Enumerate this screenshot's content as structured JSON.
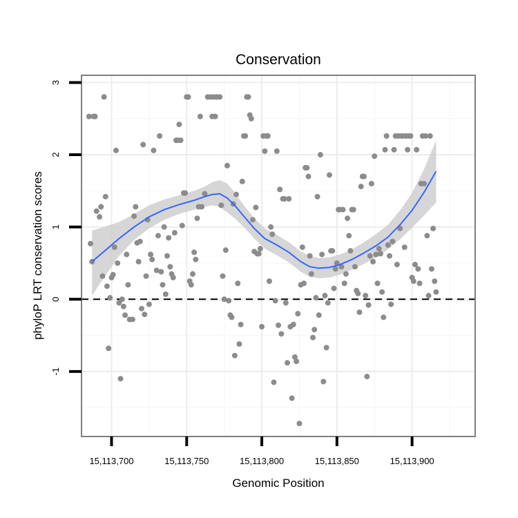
{
  "chart_data": {
    "type": "scatter",
    "title": "Conservation",
    "xlabel": "Genomic Position",
    "ylabel": "phyloP LRT conservation scores",
    "xlim": [
      15113680,
      15113942
    ],
    "ylim": [
      -1.9,
      3.1
    ],
    "x_ticks": [
      15113700,
      15113750,
      15113800,
      15113850,
      15113900
    ],
    "x_tick_labels": [
      "15,113,700",
      "15,113,750",
      "15,113,800",
      "15,113,850",
      "15,113,900"
    ],
    "y_ticks": [
      -1,
      0,
      1,
      2,
      3
    ],
    "y_tick_labels": [
      "-1",
      "0",
      "1",
      "2",
      "3"
    ],
    "reference_line": {
      "y": 0,
      "style": "dashed"
    },
    "grid": true,
    "colors": {
      "points": "#8c8c8c",
      "smooth": "#3366ff",
      "band": "#cfcfcf",
      "border": "#7f7f7f"
    },
    "points": [
      [
        15113685,
        2.53
      ],
      [
        15113686,
        0.77
      ],
      [
        15113687,
        0.52
      ],
      [
        15113688,
        2.53
      ],
      [
        15113689,
        2.53
      ],
      [
        15113690,
        1.22
      ],
      [
        15113692,
        1.14
      ],
      [
        15113693,
        1.28
      ],
      [
        15113694,
        0.32
      ],
      [
        15113695,
        2.8
      ],
      [
        15113696,
        1.42
      ],
      [
        15113697,
        0.18
      ],
      [
        15113698,
        -0.68
      ],
      [
        15113699,
        0.02
      ],
      [
        15113700,
        0.3
      ],
      [
        15113701,
        0.34
      ],
      [
        15113702,
        0.72
      ],
      [
        15113703,
        2.06
      ],
      [
        15113704,
        0.5
      ],
      [
        15113705,
        -0.05
      ],
      [
        15113706,
        -1.1
      ],
      [
        15113707,
        0.0
      ],
      [
        15113708,
        -0.1
      ],
      [
        15113709,
        -0.22
      ],
      [
        15113710,
        0.62
      ],
      [
        15113711,
        0.2
      ],
      [
        15113712,
        -0.28
      ],
      [
        15113714,
        -0.28
      ],
      [
        15113715,
        1.15
      ],
      [
        15113716,
        1.28
      ],
      [
        15113717,
        0.78
      ],
      [
        15113718,
        0.52
      ],
      [
        15113719,
        0.8
      ],
      [
        15113720,
        -0.13
      ],
      [
        15113721,
        2.14
      ],
      [
        15113722,
        -0.21
      ],
      [
        15113723,
        0.32
      ],
      [
        15113724,
        1.1
      ],
      [
        15113725,
        -0.07
      ],
      [
        15113726,
        0.62
      ],
      [
        15113727,
        0.55
      ],
      [
        15113728,
        2.06
      ],
      [
        15113730,
        0.4
      ],
      [
        15113731,
        0.88
      ],
      [
        15113732,
        2.26
      ],
      [
        15113733,
        0.38
      ],
      [
        15113734,
        0.2
      ],
      [
        15113735,
        1.0
      ],
      [
        15113736,
        0.07
      ],
      [
        15113737,
        0.6
      ],
      [
        15113738,
        0.85
      ],
      [
        15113739,
        0.45
      ],
      [
        15113740,
        0.35
      ],
      [
        15113741,
        0.3
      ],
      [
        15113742,
        0.92
      ],
      [
        15113743,
        2.2
      ],
      [
        15113744,
        2.2
      ],
      [
        15113745,
        2.42
      ],
      [
        15113746,
        2.2
      ],
      [
        15113747,
        1.02
      ],
      [
        15113748,
        1.47
      ],
      [
        15113749,
        1.47
      ],
      [
        15113750,
        2.8
      ],
      [
        15113751,
        2.8
      ],
      [
        15113752,
        0.25
      ],
      [
        15113753,
        0.2
      ],
      [
        15113754,
        0.35
      ],
      [
        15113755,
        0.65
      ],
      [
        15113756,
        0.55
      ],
      [
        15113757,
        1.12
      ],
      [
        15113758,
        1.28
      ],
      [
        15113759,
        2.53
      ],
      [
        15113760,
        1.28
      ],
      [
        15113762,
        1.46
      ],
      [
        15113764,
        2.8
      ],
      [
        15113766,
        2.8
      ],
      [
        15113767,
        2.53
      ],
      [
        15113768,
        2.8
      ],
      [
        15113769,
        2.53
      ],
      [
        15113770,
        2.8
      ],
      [
        15113772,
        2.8
      ],
      [
        15113773,
        1.3
      ],
      [
        15113774,
        0.32
      ],
      [
        15113775,
        0.0
      ],
      [
        15113776,
        0.68
      ],
      [
        15113777,
        1.85
      ],
      [
        15113778,
        -0.02
      ],
      [
        15113779,
        -0.22
      ],
      [
        15113780,
        -0.25
      ],
      [
        15113781,
        1.32
      ],
      [
        15113782,
        -0.78
      ],
      [
        15113783,
        1.45
      ],
      [
        15113784,
        0.22
      ],
      [
        15113785,
        -0.62
      ],
      [
        15113786,
        -0.35
      ],
      [
        15113787,
        1.63
      ],
      [
        15113788,
        2.26
      ],
      [
        15113789,
        2.26
      ],
      [
        15113790,
        2.8
      ],
      [
        15113791,
        2.8
      ],
      [
        15113792,
        2.55
      ],
      [
        15113793,
        2.5
      ],
      [
        15113794,
        1.1
      ],
      [
        15113795,
        0.66
      ],
      [
        15113796,
        1.27
      ],
      [
        15113797,
        0.63
      ],
      [
        15113798,
        0.63
      ],
      [
        15113799,
        0.7
      ],
      [
        15113800,
        -0.38
      ],
      [
        15113801,
        2.26
      ],
      [
        15113802,
        2.05
      ],
      [
        15113803,
        2.26
      ],
      [
        15113804,
        2.26
      ],
      [
        15113805,
        0.25
      ],
      [
        15113806,
        1.0
      ],
      [
        15113807,
        0.9
      ],
      [
        15113808,
        -1.15
      ],
      [
        15113809,
        -0.02
      ],
      [
        15113810,
        2.05
      ],
      [
        15113811,
        -0.36
      ],
      [
        15113812,
        1.52
      ],
      [
        15113813,
        -0.48
      ],
      [
        15113814,
        1.39
      ],
      [
        15113815,
        1.39
      ],
      [
        15113816,
        -0.05
      ],
      [
        15113817,
        -0.88
      ],
      [
        15113818,
        1.39
      ],
      [
        15113819,
        -0.38
      ],
      [
        15113820,
        -1.37
      ],
      [
        15113821,
        -0.35
      ],
      [
        15113822,
        -0.8
      ],
      [
        15113823,
        -0.86
      ],
      [
        15113824,
        -0.2
      ],
      [
        15113825,
        -1.72
      ],
      [
        15113826,
        0.2
      ],
      [
        15113827,
        0.72
      ],
      [
        15113828,
        0.22
      ],
      [
        15113829,
        1.82
      ],
      [
        15113830,
        1.82
      ],
      [
        15113831,
        1.7
      ],
      [
        15113832,
        0.6
      ],
      [
        15113833,
        0.35
      ],
      [
        15113834,
        -0.53
      ],
      [
        15113835,
        -0.42
      ],
      [
        15113836,
        0.02
      ],
      [
        15113837,
        1.42
      ],
      [
        15113838,
        -0.22
      ],
      [
        15113839,
        2.0
      ],
      [
        15113840,
        0.62
      ],
      [
        15113841,
        -1.14
      ],
      [
        15113842,
        0.05
      ],
      [
        15113843,
        -0.67
      ],
      [
        15113844,
        -0.05
      ],
      [
        15113845,
        1.72
      ],
      [
        15113846,
        0.67
      ],
      [
        15113847,
        0.67
      ],
      [
        15113848,
        0.15
      ],
      [
        15113849,
        0.42
      ],
      [
        15113850,
        0.5
      ],
      [
        15113851,
        1.24
      ],
      [
        15113852,
        1.24
      ],
      [
        15113853,
        0.45
      ],
      [
        15113854,
        1.24
      ],
      [
        15113855,
        0.22
      ],
      [
        15113856,
        0.35
      ],
      [
        15113857,
        1.12
      ],
      [
        15113858,
        0.88
      ],
      [
        15113859,
        0.67
      ],
      [
        15113860,
        1.24
      ],
      [
        15113861,
        1.24
      ],
      [
        15113862,
        0.45
      ],
      [
        15113863,
        0.12
      ],
      [
        15113864,
        0.08
      ],
      [
        15113865,
        -0.18
      ],
      [
        15113866,
        1.56
      ],
      [
        15113867,
        1.7
      ],
      [
        15113868,
        1.7
      ],
      [
        15113869,
        0.05
      ],
      [
        15113870,
        -1.07
      ],
      [
        15113871,
        -0.08
      ],
      [
        15113872,
        0.6
      ],
      [
        15113873,
        1.6
      ],
      [
        15113874,
        0.52
      ],
      [
        15113875,
        1.98
      ],
      [
        15113876,
        0.62
      ],
      [
        15113877,
        0.22
      ],
      [
        15113878,
        0.7
      ],
      [
        15113879,
        0.63
      ],
      [
        15113880,
        0.1
      ],
      [
        15113881,
        -0.25
      ],
      [
        15113882,
        2.07
      ],
      [
        15113883,
        2.26
      ],
      [
        15113884,
        0.75
      ],
      [
        15113885,
        0.6
      ],
      [
        15113886,
        -0.07
      ],
      [
        15113887,
        0.8
      ],
      [
        15113888,
        2.07
      ],
      [
        15113889,
        2.26
      ],
      [
        15113890,
        0.48
      ],
      [
        15113891,
        2.26
      ],
      [
        15113892,
        0.98
      ],
      [
        15113893,
        2.26
      ],
      [
        15113894,
        2.26
      ],
      [
        15113895,
        0.72
      ],
      [
        15113896,
        2.26
      ],
      [
        15113897,
        2.07
      ],
      [
        15113898,
        2.26
      ],
      [
        15113899,
        2.26
      ],
      [
        15113900,
        0.3
      ],
      [
        15113901,
        0.25
      ],
      [
        15113902,
        0.48
      ],
      [
        15113903,
        2.07
      ],
      [
        15113904,
        0.42
      ],
      [
        15113905,
        0.22
      ],
      [
        15113906,
        1.6
      ],
      [
        15113907,
        2.26
      ],
      [
        15113908,
        1.6
      ],
      [
        15113909,
        2.26
      ],
      [
        15113910,
        0.88
      ],
      [
        15113911,
        0.05
      ],
      [
        15113912,
        2.26
      ],
      [
        15113913,
        0.42
      ],
      [
        15113914,
        0.98
      ],
      [
        15113915,
        0.25
      ],
      [
        15113916,
        0.1
      ]
    ],
    "smooth_curve": [
      [
        15113687,
        0.52
      ],
      [
        15113695,
        0.66
      ],
      [
        15113705,
        0.84
      ],
      [
        15113715,
        1.0
      ],
      [
        15113725,
        1.14
      ],
      [
        15113735,
        1.24
      ],
      [
        15113745,
        1.31
      ],
      [
        15113755,
        1.37
      ],
      [
        15113762,
        1.42
      ],
      [
        15113767,
        1.45
      ],
      [
        15113772,
        1.46
      ],
      [
        15113777,
        1.4
      ],
      [
        15113782,
        1.3
      ],
      [
        15113788,
        1.15
      ],
      [
        15113795,
        0.98
      ],
      [
        15113802,
        0.84
      ],
      [
        15113810,
        0.75
      ],
      [
        15113818,
        0.65
      ],
      [
        15113826,
        0.52
      ],
      [
        15113832,
        0.45
      ],
      [
        15113838,
        0.43
      ],
      [
        15113845,
        0.44
      ],
      [
        15113852,
        0.48
      ],
      [
        15113860,
        0.55
      ],
      [
        15113868,
        0.64
      ],
      [
        15113876,
        0.74
      ],
      [
        15113884,
        0.86
      ],
      [
        15113892,
        1.03
      ],
      [
        15113900,
        1.23
      ],
      [
        15113908,
        1.48
      ],
      [
        15113916,
        1.77
      ]
    ],
    "ci_upper": [
      [
        15113687,
        0.95
      ],
      [
        15113695,
        1.0
      ],
      [
        15113705,
        1.07
      ],
      [
        15113715,
        1.18
      ],
      [
        15113725,
        1.3
      ],
      [
        15113735,
        1.38
      ],
      [
        15113745,
        1.44
      ],
      [
        15113755,
        1.5
      ],
      [
        15113762,
        1.56
      ],
      [
        15113767,
        1.62
      ],
      [
        15113772,
        1.65
      ],
      [
        15113777,
        1.6
      ],
      [
        15113782,
        1.48
      ],
      [
        15113788,
        1.3
      ],
      [
        15113795,
        1.12
      ],
      [
        15113802,
        0.98
      ],
      [
        15113810,
        0.89
      ],
      [
        15113818,
        0.79
      ],
      [
        15113826,
        0.66
      ],
      [
        15113832,
        0.6
      ],
      [
        15113838,
        0.57
      ],
      [
        15113845,
        0.58
      ],
      [
        15113852,
        0.62
      ],
      [
        15113860,
        0.69
      ],
      [
        15113868,
        0.79
      ],
      [
        15113876,
        0.9
      ],
      [
        15113884,
        1.03
      ],
      [
        15113892,
        1.23
      ],
      [
        15113900,
        1.47
      ],
      [
        15113908,
        1.8
      ],
      [
        15113916,
        2.2
      ]
    ],
    "ci_lower": [
      [
        15113687,
        0.05
      ],
      [
        15113695,
        0.3
      ],
      [
        15113705,
        0.6
      ],
      [
        15113715,
        0.82
      ],
      [
        15113725,
        0.98
      ],
      [
        15113735,
        1.1
      ],
      [
        15113745,
        1.18
      ],
      [
        15113755,
        1.24
      ],
      [
        15113762,
        1.28
      ],
      [
        15113767,
        1.3
      ],
      [
        15113772,
        1.28
      ],
      [
        15113777,
        1.2
      ],
      [
        15113782,
        1.12
      ],
      [
        15113788,
        1.0
      ],
      [
        15113795,
        0.84
      ],
      [
        15113802,
        0.7
      ],
      [
        15113810,
        0.61
      ],
      [
        15113818,
        0.51
      ],
      [
        15113826,
        0.38
      ],
      [
        15113832,
        0.31
      ],
      [
        15113838,
        0.29
      ],
      [
        15113845,
        0.3
      ],
      [
        15113852,
        0.34
      ],
      [
        15113860,
        0.41
      ],
      [
        15113868,
        0.49
      ],
      [
        15113876,
        0.58
      ],
      [
        15113884,
        0.69
      ],
      [
        15113892,
        0.83
      ],
      [
        15113900,
        0.99
      ],
      [
        15113908,
        1.16
      ],
      [
        15113916,
        1.34
      ]
    ]
  }
}
